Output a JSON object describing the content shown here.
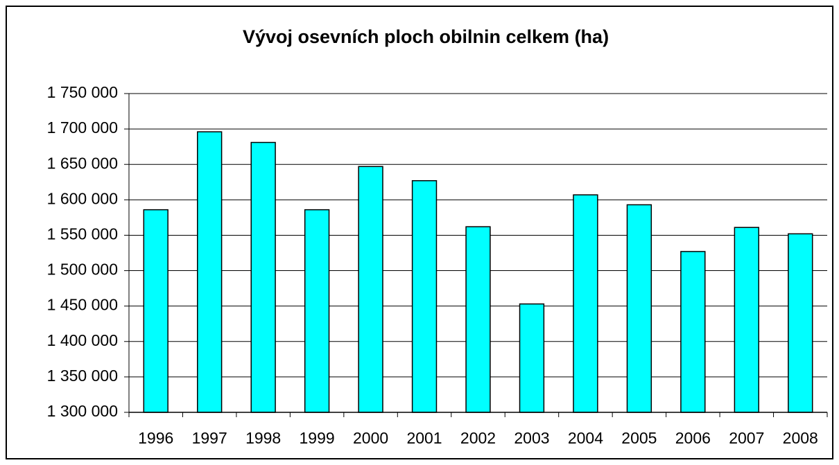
{
  "chart_data": {
    "type": "bar",
    "title": "Vývoj osevních ploch obilnin celkem (ha)",
    "categories": [
      "1996",
      "1997",
      "1998",
      "1999",
      "2000",
      "2001",
      "2002",
      "2003",
      "2004",
      "2005",
      "2006",
      "2007",
      "2008"
    ],
    "values": [
      1586000,
      1696000,
      1681000,
      1586000,
      1647000,
      1627000,
      1562000,
      1453000,
      1607000,
      1593000,
      1527000,
      1561000,
      1552000
    ],
    "color": "#00ffff",
    "ylim": [
      1300000,
      1750000
    ],
    "yticks": [
      {
        "value": 1300000,
        "label": "1 300 000"
      },
      {
        "value": 1350000,
        "label": "1 350 000"
      },
      {
        "value": 1400000,
        "label": "1 400 000"
      },
      {
        "value": 1450000,
        "label": "1 450 000"
      },
      {
        "value": 1500000,
        "label": "1 500 000"
      },
      {
        "value": 1550000,
        "label": "1 550 000"
      },
      {
        "value": 1600000,
        "label": "1 600 000"
      },
      {
        "value": 1650000,
        "label": "1 650 000"
      },
      {
        "value": 1700000,
        "label": "1 700 000"
      },
      {
        "value": 1750000,
        "label": "1 750 000"
      }
    ],
    "grid": true
  }
}
